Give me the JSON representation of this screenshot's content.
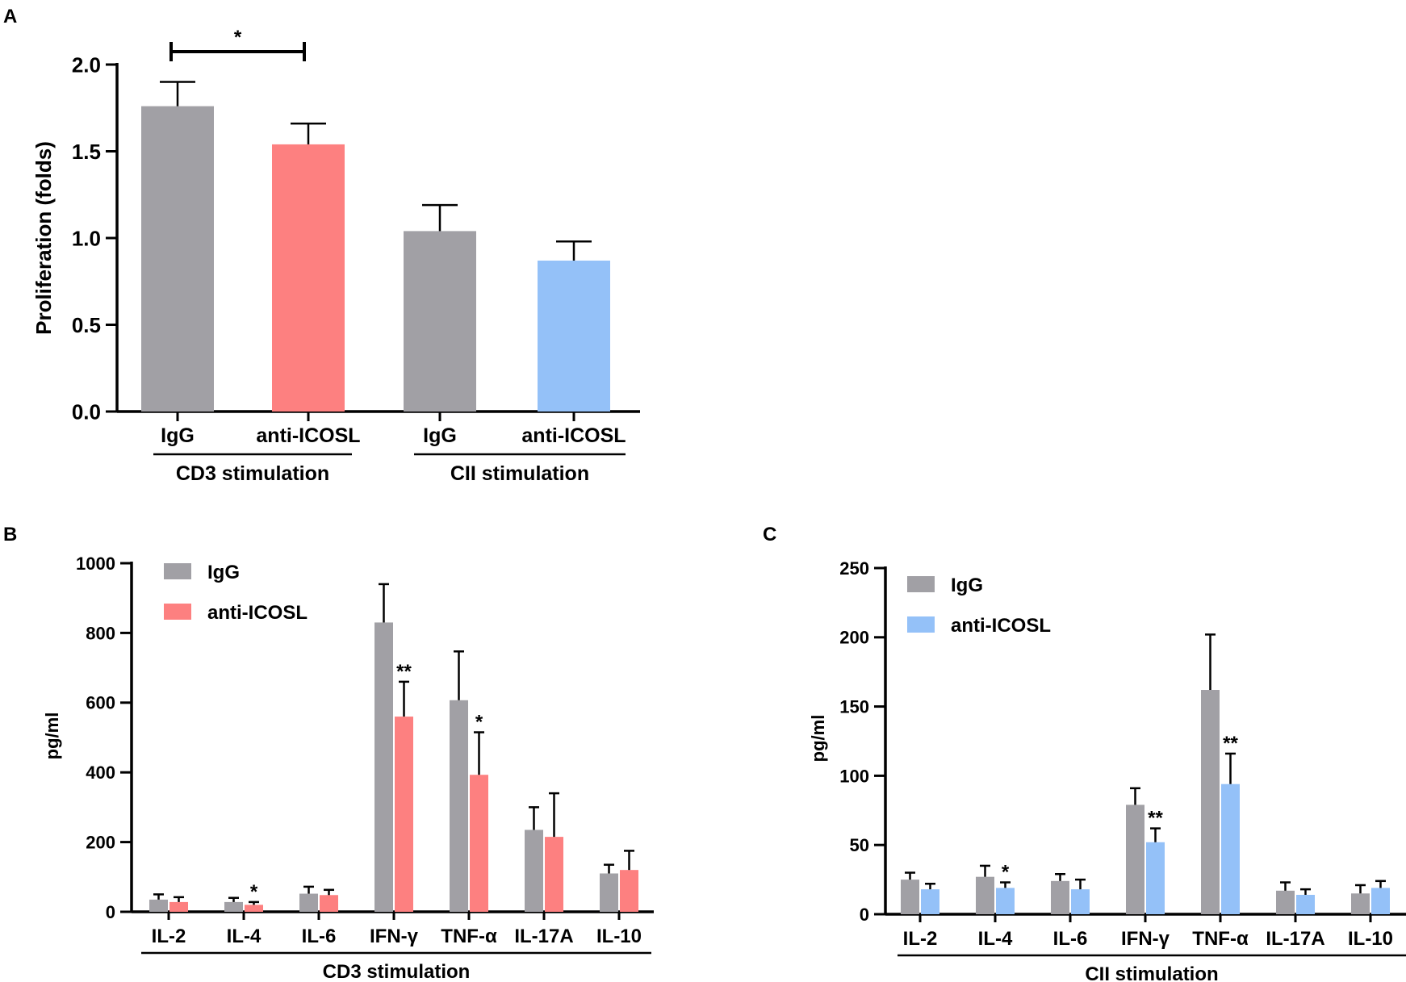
{
  "colors": {
    "igg": "#a1a0a5",
    "anti_icosl_cd3": "#fd8080",
    "anti_icosl_cii": "#94c1f8",
    "axis": "#000000"
  },
  "chart_data": [
    {
      "panel": "A",
      "type": "bar",
      "ylabel": "Proliferation (folds)",
      "ylim": [
        0,
        2.0
      ],
      "yticks": [
        "0.0",
        "0.5",
        "1.0",
        "1.5",
        "2.0"
      ],
      "categories": [
        "IgG",
        "anti-ICOSL",
        "IgG",
        "anti-ICOSL"
      ],
      "values": [
        1.76,
        1.54,
        1.04,
        0.87
      ],
      "errors": [
        0.14,
        0.12,
        0.15,
        0.11
      ],
      "groups": [
        {
          "label": "CD3 stimulation",
          "members": [
            0,
            1
          ]
        },
        {
          "label": "CII stimulation",
          "members": [
            2,
            3
          ]
        }
      ],
      "significance": [
        {
          "from": 0,
          "to": 1,
          "label": "*"
        }
      ]
    },
    {
      "panel": "B",
      "type": "bar",
      "xlabel": "CD3 stimulation",
      "ylabel": "pg/ml",
      "ylim": [
        0,
        1000
      ],
      "yticks": [
        "0",
        "200",
        "400",
        "600",
        "800",
        "1000"
      ],
      "categories": [
        "IL-2",
        "IL-4",
        "IL-6",
        "IFN-γ",
        "TNF-α",
        "IL-17A",
        "IL-10"
      ],
      "legend": [
        "IgG",
        "anti-ICOSL"
      ],
      "series": [
        {
          "name": "IgG",
          "values": [
            35,
            28,
            52,
            830,
            607,
            235,
            110
          ],
          "errors": [
            15,
            12,
            20,
            110,
            140,
            65,
            25
          ]
        },
        {
          "name": "anti-ICOSL",
          "values": [
            28,
            20,
            48,
            560,
            393,
            215,
            120
          ],
          "errors": [
            14,
            8,
            15,
            100,
            122,
            125,
            55
          ]
        }
      ],
      "annotations": [
        {
          "category": 1,
          "series": 1,
          "label": "*"
        },
        {
          "category": 3,
          "series": 1,
          "label": "**"
        },
        {
          "category": 4,
          "series": 1,
          "label": "*"
        }
      ]
    },
    {
      "panel": "C",
      "type": "bar",
      "xlabel": "CII stimulation",
      "ylabel": "pg/ml",
      "ylim": [
        0,
        250
      ],
      "yticks": [
        "0",
        "50",
        "100",
        "150",
        "200",
        "250"
      ],
      "categories": [
        "IL-2",
        "IL-4",
        "IL-6",
        "IFN-γ",
        "TNF-α",
        "IL-17A",
        "IL-10"
      ],
      "legend": [
        "IgG",
        "anti-ICOSL"
      ],
      "series": [
        {
          "name": "IgG",
          "values": [
            25,
            27,
            24,
            79,
            162,
            17,
            15
          ],
          "errors": [
            5,
            8,
            5,
            12,
            40,
            6,
            6
          ]
        },
        {
          "name": "anti-ICOSL",
          "values": [
            18,
            19,
            18,
            52,
            94,
            14,
            19
          ],
          "errors": [
            4,
            4,
            7,
            10,
            22,
            4,
            5
          ]
        }
      ],
      "annotations": [
        {
          "category": 1,
          "series": 1,
          "label": "*"
        },
        {
          "category": 3,
          "series": 1,
          "label": "**"
        },
        {
          "category": 4,
          "series": 1,
          "label": "**"
        }
      ]
    }
  ]
}
